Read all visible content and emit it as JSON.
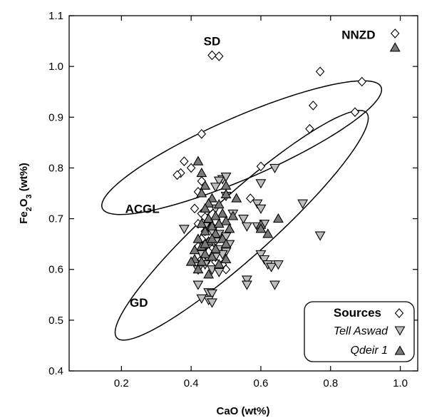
{
  "chart_data": {
    "type": "scatter",
    "xlabel": "CaO (wt%)",
    "ylabel": "Fe2O3 (wt%)",
    "ylabel_parts": {
      "pre": "Fe",
      "sub1": "2",
      "mid": "O",
      "sub2": "3",
      "post": " (wt%)"
    },
    "xlim": [
      0.05,
      1.05
    ],
    "ylim": [
      0.4,
      1.1
    ],
    "x_ticks": [
      0.2,
      0.4,
      0.6,
      0.8,
      1.0
    ],
    "x_tick_labels": [
      "0.2",
      "0.4",
      "0.6",
      "0.8",
      "1.0"
    ],
    "y_ticks": [
      0.4,
      0.5,
      0.6,
      0.7,
      0.8,
      0.9,
      1.0,
      1.1
    ],
    "y_tick_labels": [
      "0.4",
      "0.5",
      "0.6",
      "0.7",
      "0.8",
      "0.9",
      "1.0",
      "1.1"
    ],
    "grid": false,
    "legend": {
      "placement": "bottom-right",
      "title": "Sources",
      "items": [
        {
          "label": "Tell Aswad",
          "marker": "triangle-down",
          "fill": "#bdbdbd"
        },
        {
          "label": "Qdeir 1",
          "marker": "triangle-up",
          "fill": "#7a7a7a"
        }
      ]
    },
    "region_labels": [
      {
        "text": "SD",
        "x": 0.46,
        "y": 1.05
      },
      {
        "text": "NNZD",
        "x": 0.88,
        "y": 1.063
      },
      {
        "text": "ACGL",
        "x": 0.26,
        "y": 0.72
      },
      {
        "text": "GD",
        "x": 0.25,
        "y": 0.535
      }
    ],
    "ellipses": [
      {
        "name": "ACGL",
        "cx": 0.545,
        "cy": 0.84,
        "rx": 0.436,
        "ry": 0.088,
        "angle_deg": 23.5
      },
      {
        "name": "GD",
        "cx": 0.545,
        "cy": 0.687,
        "rx": 0.482,
        "ry": 0.089,
        "angle_deg": 42
      }
    ],
    "series": [
      {
        "name": "Sources",
        "marker": "diamond",
        "fill": "#ffffff",
        "points": [
          [
            0.46,
            1.022
          ],
          [
            0.48,
            1.02
          ],
          [
            0.985,
            1.065
          ],
          [
            0.77,
            0.99
          ],
          [
            0.89,
            0.97
          ],
          [
            0.75,
            0.923
          ],
          [
            0.87,
            0.91
          ],
          [
            0.74,
            0.877
          ],
          [
            0.43,
            0.867
          ],
          [
            0.38,
            0.813
          ],
          [
            0.4,
            0.8
          ],
          [
            0.37,
            0.79
          ],
          [
            0.36,
            0.786
          ],
          [
            0.6,
            0.803
          ],
          [
            0.43,
            0.774
          ],
          [
            0.42,
            0.753
          ],
          [
            0.57,
            0.74
          ],
          [
            0.41,
            0.72
          ],
          [
            0.43,
            0.71
          ],
          [
            0.44,
            0.703
          ],
          [
            0.45,
            0.696
          ],
          [
            0.42,
            0.69
          ],
          [
            0.46,
            0.685
          ],
          [
            0.44,
            0.675
          ],
          [
            0.47,
            0.67
          ],
          [
            0.43,
            0.66
          ],
          [
            0.45,
            0.655
          ],
          [
            0.42,
            0.645
          ],
          [
            0.46,
            0.64
          ],
          [
            0.44,
            0.63
          ],
          [
            0.43,
            0.62
          ],
          [
            0.47,
            0.615
          ],
          [
            0.49,
            0.61
          ],
          [
            0.5,
            0.6
          ],
          [
            0.45,
            0.635
          ],
          [
            0.48,
            0.665
          ]
        ]
      },
      {
        "name": "Tell Aswad",
        "marker": "triangle-down",
        "fill": "#bdbdbd",
        "points": [
          [
            0.49,
            0.778
          ],
          [
            0.5,
            0.783
          ],
          [
            0.48,
            0.775
          ],
          [
            0.64,
            0.8
          ],
          [
            0.6,
            0.77
          ],
          [
            0.47,
            0.763
          ],
          [
            0.59,
            0.73
          ],
          [
            0.6,
            0.72
          ],
          [
            0.72,
            0.73
          ],
          [
            0.5,
            0.745
          ],
          [
            0.47,
            0.72
          ],
          [
            0.52,
            0.71
          ],
          [
            0.55,
            0.7
          ],
          [
            0.56,
            0.685
          ],
          [
            0.61,
            0.69
          ],
          [
            0.59,
            0.685
          ],
          [
            0.38,
            0.68
          ],
          [
            0.44,
            0.685
          ],
          [
            0.46,
            0.675
          ],
          [
            0.48,
            0.67
          ],
          [
            0.5,
            0.665
          ],
          [
            0.47,
            0.655
          ],
          [
            0.51,
            0.65
          ],
          [
            0.44,
            0.645
          ],
          [
            0.48,
            0.64
          ],
          [
            0.5,
            0.635
          ],
          [
            0.43,
            0.63
          ],
          [
            0.45,
            0.62
          ],
          [
            0.47,
            0.625
          ],
          [
            0.49,
            0.63
          ],
          [
            0.44,
            0.61
          ],
          [
            0.46,
            0.6
          ],
          [
            0.48,
            0.595
          ],
          [
            0.6,
            0.63
          ],
          [
            0.61,
            0.62
          ],
          [
            0.62,
            0.61
          ],
          [
            0.63,
            0.605
          ],
          [
            0.65,
            0.61
          ],
          [
            0.77,
            0.667
          ],
          [
            0.56,
            0.58
          ],
          [
            0.56,
            0.57
          ],
          [
            0.64,
            0.57
          ],
          [
            0.42,
            0.57
          ],
          [
            0.45,
            0.555
          ],
          [
            0.46,
            0.553
          ],
          [
            0.45,
            0.54
          ],
          [
            0.43,
            0.543
          ],
          [
            0.46,
            0.535
          ],
          [
            0.42,
            0.6
          ]
        ]
      },
      {
        "name": "Qdeir 1",
        "marker": "triangle-up",
        "fill": "#7a7a7a",
        "points": [
          [
            0.985,
            1.037
          ],
          [
            0.42,
            0.813
          ],
          [
            0.43,
            0.79
          ],
          [
            0.44,
            0.765
          ],
          [
            0.5,
            0.765
          ],
          [
            0.5,
            0.748
          ],
          [
            0.43,
            0.75
          ],
          [
            0.46,
            0.74
          ],
          [
            0.53,
            0.74
          ],
          [
            0.45,
            0.73
          ],
          [
            0.48,
            0.728
          ],
          [
            0.44,
            0.72
          ],
          [
            0.49,
            0.71
          ],
          [
            0.52,
            0.705
          ],
          [
            0.45,
            0.7
          ],
          [
            0.47,
            0.705
          ],
          [
            0.43,
            0.69
          ],
          [
            0.5,
            0.695
          ],
          [
            0.46,
            0.685
          ],
          [
            0.48,
            0.69
          ],
          [
            0.51,
            0.68
          ],
          [
            0.44,
            0.675
          ],
          [
            0.47,
            0.67
          ],
          [
            0.49,
            0.66
          ],
          [
            0.42,
            0.66
          ],
          [
            0.45,
            0.655
          ],
          [
            0.5,
            0.65
          ],
          [
            0.43,
            0.645
          ],
          [
            0.47,
            0.64
          ],
          [
            0.44,
            0.63
          ],
          [
            0.46,
            0.625
          ],
          [
            0.41,
            0.62
          ],
          [
            0.43,
            0.615
          ],
          [
            0.48,
            0.61
          ],
          [
            0.5,
            0.62
          ],
          [
            0.4,
            0.615
          ],
          [
            0.6,
            0.688
          ],
          [
            0.62,
            0.67
          ],
          [
            0.65,
            0.7
          ],
          [
            0.6,
            0.68
          ],
          [
            0.45,
            0.59
          ],
          [
            0.42,
            0.6
          ],
          [
            0.44,
            0.65
          ],
          [
            0.46,
            0.66
          ],
          [
            0.41,
            0.638
          ]
        ]
      }
    ]
  }
}
